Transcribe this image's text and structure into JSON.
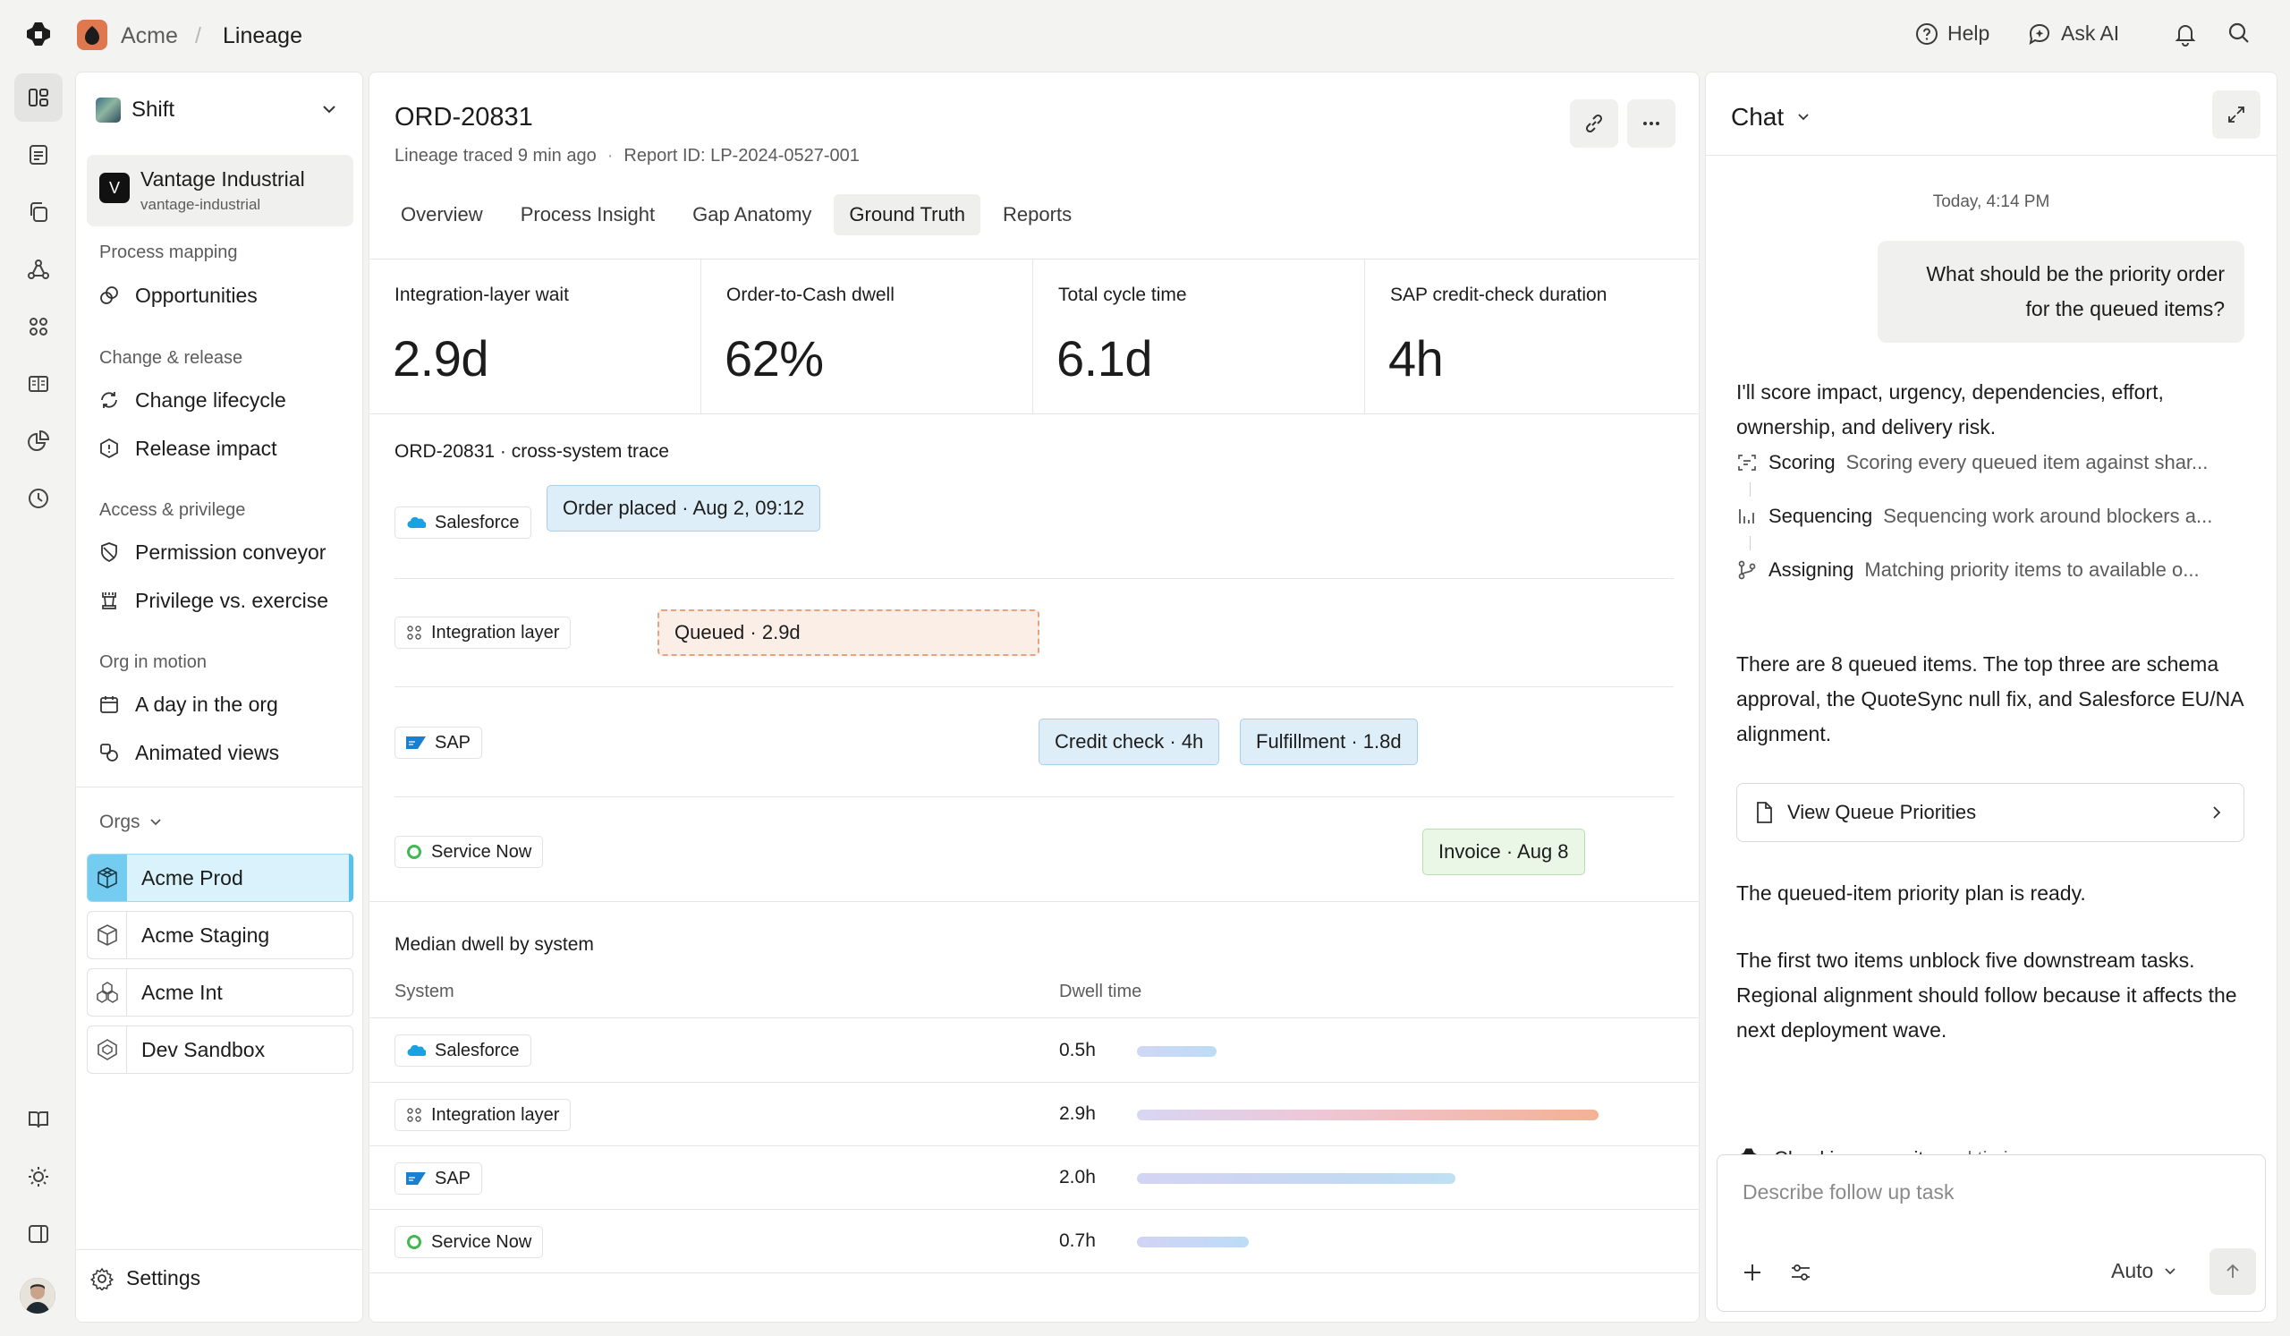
{
  "header": {
    "org": "Acme",
    "separator": "/",
    "page": "Lineage",
    "help": "Help",
    "ask_ai": "Ask AI"
  },
  "rail": {
    "icons": [
      "layout-icon",
      "document-icon",
      "copy-icon",
      "network-icon",
      "apps-icon",
      "book-icon",
      "pie-chart-icon",
      "clock-icon"
    ],
    "bottom_icons": [
      "guide-book-icon",
      "sun-icon",
      "sidebar-toggle-icon"
    ]
  },
  "sidebar": {
    "workspace": "Shift",
    "company": {
      "mark": "V",
      "name": "Vantage Industrial",
      "slug": "vantage-industrial"
    },
    "sections": [
      {
        "title": "Process mapping",
        "items": [
          {
            "label": "Opportunities",
            "icon": "opportunities-icon"
          }
        ]
      },
      {
        "title": "Change & release",
        "items": [
          {
            "label": "Change lifecycle",
            "icon": "refresh-icon"
          },
          {
            "label": "Release impact",
            "icon": "alert-hexagon-icon"
          }
        ]
      },
      {
        "title": "Access & privilege",
        "items": [
          {
            "label": "Permission conveyor",
            "icon": "shield-icon"
          },
          {
            "label": "Privilege vs. exercise",
            "icon": "tower-icon"
          }
        ]
      },
      {
        "title": "Org in motion",
        "items": [
          {
            "label": "A day in the org",
            "icon": "calendar-icon"
          },
          {
            "label": "Animated views",
            "icon": "shapes-icon"
          }
        ]
      }
    ],
    "orgs_label": "Orgs",
    "orgs": [
      {
        "label": "Acme Prod",
        "active": true
      },
      {
        "label": "Acme Staging",
        "active": false
      },
      {
        "label": "Acme Int",
        "active": false
      },
      {
        "label": "Dev Sandbox",
        "active": false
      }
    ],
    "settings": "Settings"
  },
  "main": {
    "title": "ORD-20831",
    "meta": {
      "traced": "Lineage traced 9 min ago",
      "dot": "·",
      "report": "Report ID: LP-2024-0527-001"
    },
    "tabs": [
      "Overview",
      "Process Insight",
      "Gap Anatomy",
      "Ground Truth",
      "Reports"
    ],
    "active_tab": "Ground Truth",
    "kpis": [
      {
        "label": "Integration-layer wait",
        "value": "2.9d"
      },
      {
        "label": "Order-to-Cash dwell",
        "value": "62%"
      },
      {
        "label": "Total cycle time",
        "value": "6.1d"
      },
      {
        "label": "SAP credit-check duration",
        "value": "4h"
      }
    ],
    "trace": {
      "title": "ORD-20831 · cross-system trace",
      "rows": [
        {
          "system": "Salesforce",
          "events": [
            "Order placed · Aug 2, 09:12"
          ]
        },
        {
          "system": "Integration layer",
          "events": [
            "Queued · 2.9d"
          ]
        },
        {
          "system": "SAP",
          "events": [
            "Credit check · 4h",
            "Fulfillment · 1.8d"
          ]
        },
        {
          "system": "Service Now",
          "events": [
            "Invoice · Aug 8"
          ]
        }
      ]
    },
    "dwell": {
      "title": "Median dwell by system",
      "col_system": "System",
      "col_time": "Dwell time",
      "rows": [
        {
          "system": "Salesforce",
          "value": "0.5h",
          "hours": 0.5
        },
        {
          "system": "Integration layer",
          "value": "2.9h",
          "hours": 2.9
        },
        {
          "system": "SAP",
          "value": "2.0h",
          "hours": 2.0
        },
        {
          "system": "Service Now",
          "value": "0.7h",
          "hours": 0.7
        }
      ]
    }
  },
  "chat": {
    "title": "Chat",
    "timestamp": "Today, 4:14 PM",
    "user_message": "What should be the priority order for the queued items?",
    "reply_intro": "I'll score impact, urgency, dependencies, effort, ownership, and delivery risk.",
    "steps": [
      {
        "name": "Scoring",
        "desc": "Scoring every queued item against shar..."
      },
      {
        "name": "Sequencing",
        "desc": "Sequencing work around blockers a..."
      },
      {
        "name": "Assigning",
        "desc": "Matching priority items to available o..."
      }
    ],
    "summary": "There are 8 queued items. The top three are schema approval, the QuoteSync null fix, and Salesforce EU/NA alignment.",
    "card_label": "View Queue Priorities",
    "ready": "The queued-item priority plan is ready.",
    "detail": "The first two items unblock five downstream tasks. Regional alignment should follow because it affects the next deployment wave.",
    "status_main": "Checking capacity",
    "status_fade": " and timing...",
    "composer_placeholder": "Describe follow up task",
    "model": "Auto"
  },
  "colors": {
    "accent_cyan": "#55c3ee",
    "event_blue": "#ddeef8",
    "event_orange": "#fbeee6",
    "event_green": "#eaf7e6",
    "salesforce_blue": "#1aa1e0",
    "servicenow_green": "#3fb950"
  }
}
